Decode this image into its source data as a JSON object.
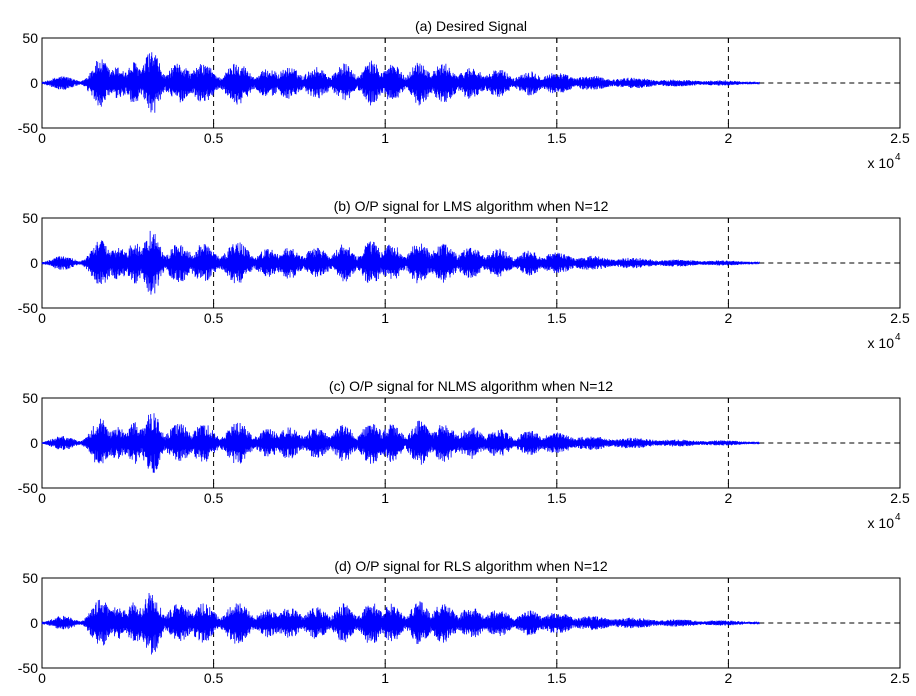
{
  "figure": {
    "background": "#ffffff",
    "signal_color": "#0000ff",
    "grid_color": "#000000"
  },
  "chart_data": [
    {
      "type": "line",
      "title": "(a) Desired Signal",
      "xlim": [
        0,
        2.5
      ],
      "ylim": [
        -50,
        50
      ],
      "x_ticks": [
        "0",
        "0.5",
        "1",
        "1.5",
        "2",
        "2.5"
      ],
      "y_ticks": [
        "50",
        "0",
        "-50"
      ],
      "x_multiplier": "x 10",
      "x_multiplier_exponent": "4",
      "grid": "x-only dashed",
      "series": [
        {
          "x_end": 2.09,
          "envelope_peak": 37,
          "peak_at": 0.32
        }
      ]
    },
    {
      "type": "line",
      "title": "(b) O/P signal for LMS algorithm when N=12",
      "xlim": [
        0,
        2.5
      ],
      "ylim": [
        -50,
        50
      ],
      "x_ticks": [
        "0",
        "0.5",
        "1",
        "1.5",
        "2",
        "2.5"
      ],
      "y_ticks": [
        "50",
        "0",
        "-50"
      ],
      "x_multiplier": "x 10",
      "x_multiplier_exponent": "4",
      "grid": "x-only dashed",
      "series": [
        {
          "x_end": 2.09,
          "envelope_peak": 37,
          "peak_at": 0.32
        }
      ]
    },
    {
      "type": "line",
      "title": "(c) O/P signal for NLMS algorithm when N=12",
      "xlim": [
        0,
        2.5
      ],
      "ylim": [
        -50,
        50
      ],
      "x_ticks": [
        "0",
        "0.5",
        "1",
        "1.5",
        "2",
        "2.5"
      ],
      "y_ticks": [
        "50",
        "0",
        "-50"
      ],
      "x_multiplier": "x 10",
      "x_multiplier_exponent": "4",
      "grid": "x-only dashed",
      "series": [
        {
          "x_end": 2.09,
          "envelope_peak": 37,
          "peak_at": 0.32
        }
      ]
    },
    {
      "type": "line",
      "title": "(d) O/P signal for RLS algorithm when N=12",
      "xlim": [
        0,
        2.5
      ],
      "ylim": [
        -50,
        50
      ],
      "x_ticks": [
        "0",
        "0.5",
        "1",
        "1.5",
        "2",
        "2.5"
      ],
      "y_ticks": [
        "50",
        "0",
        "-50"
      ],
      "x_multiplier": "",
      "x_multiplier_exponent": "",
      "grid": "x-only dashed",
      "series": [
        {
          "x_end": 2.09,
          "envelope_peak": 37,
          "peak_at": 0.32
        }
      ]
    }
  ]
}
